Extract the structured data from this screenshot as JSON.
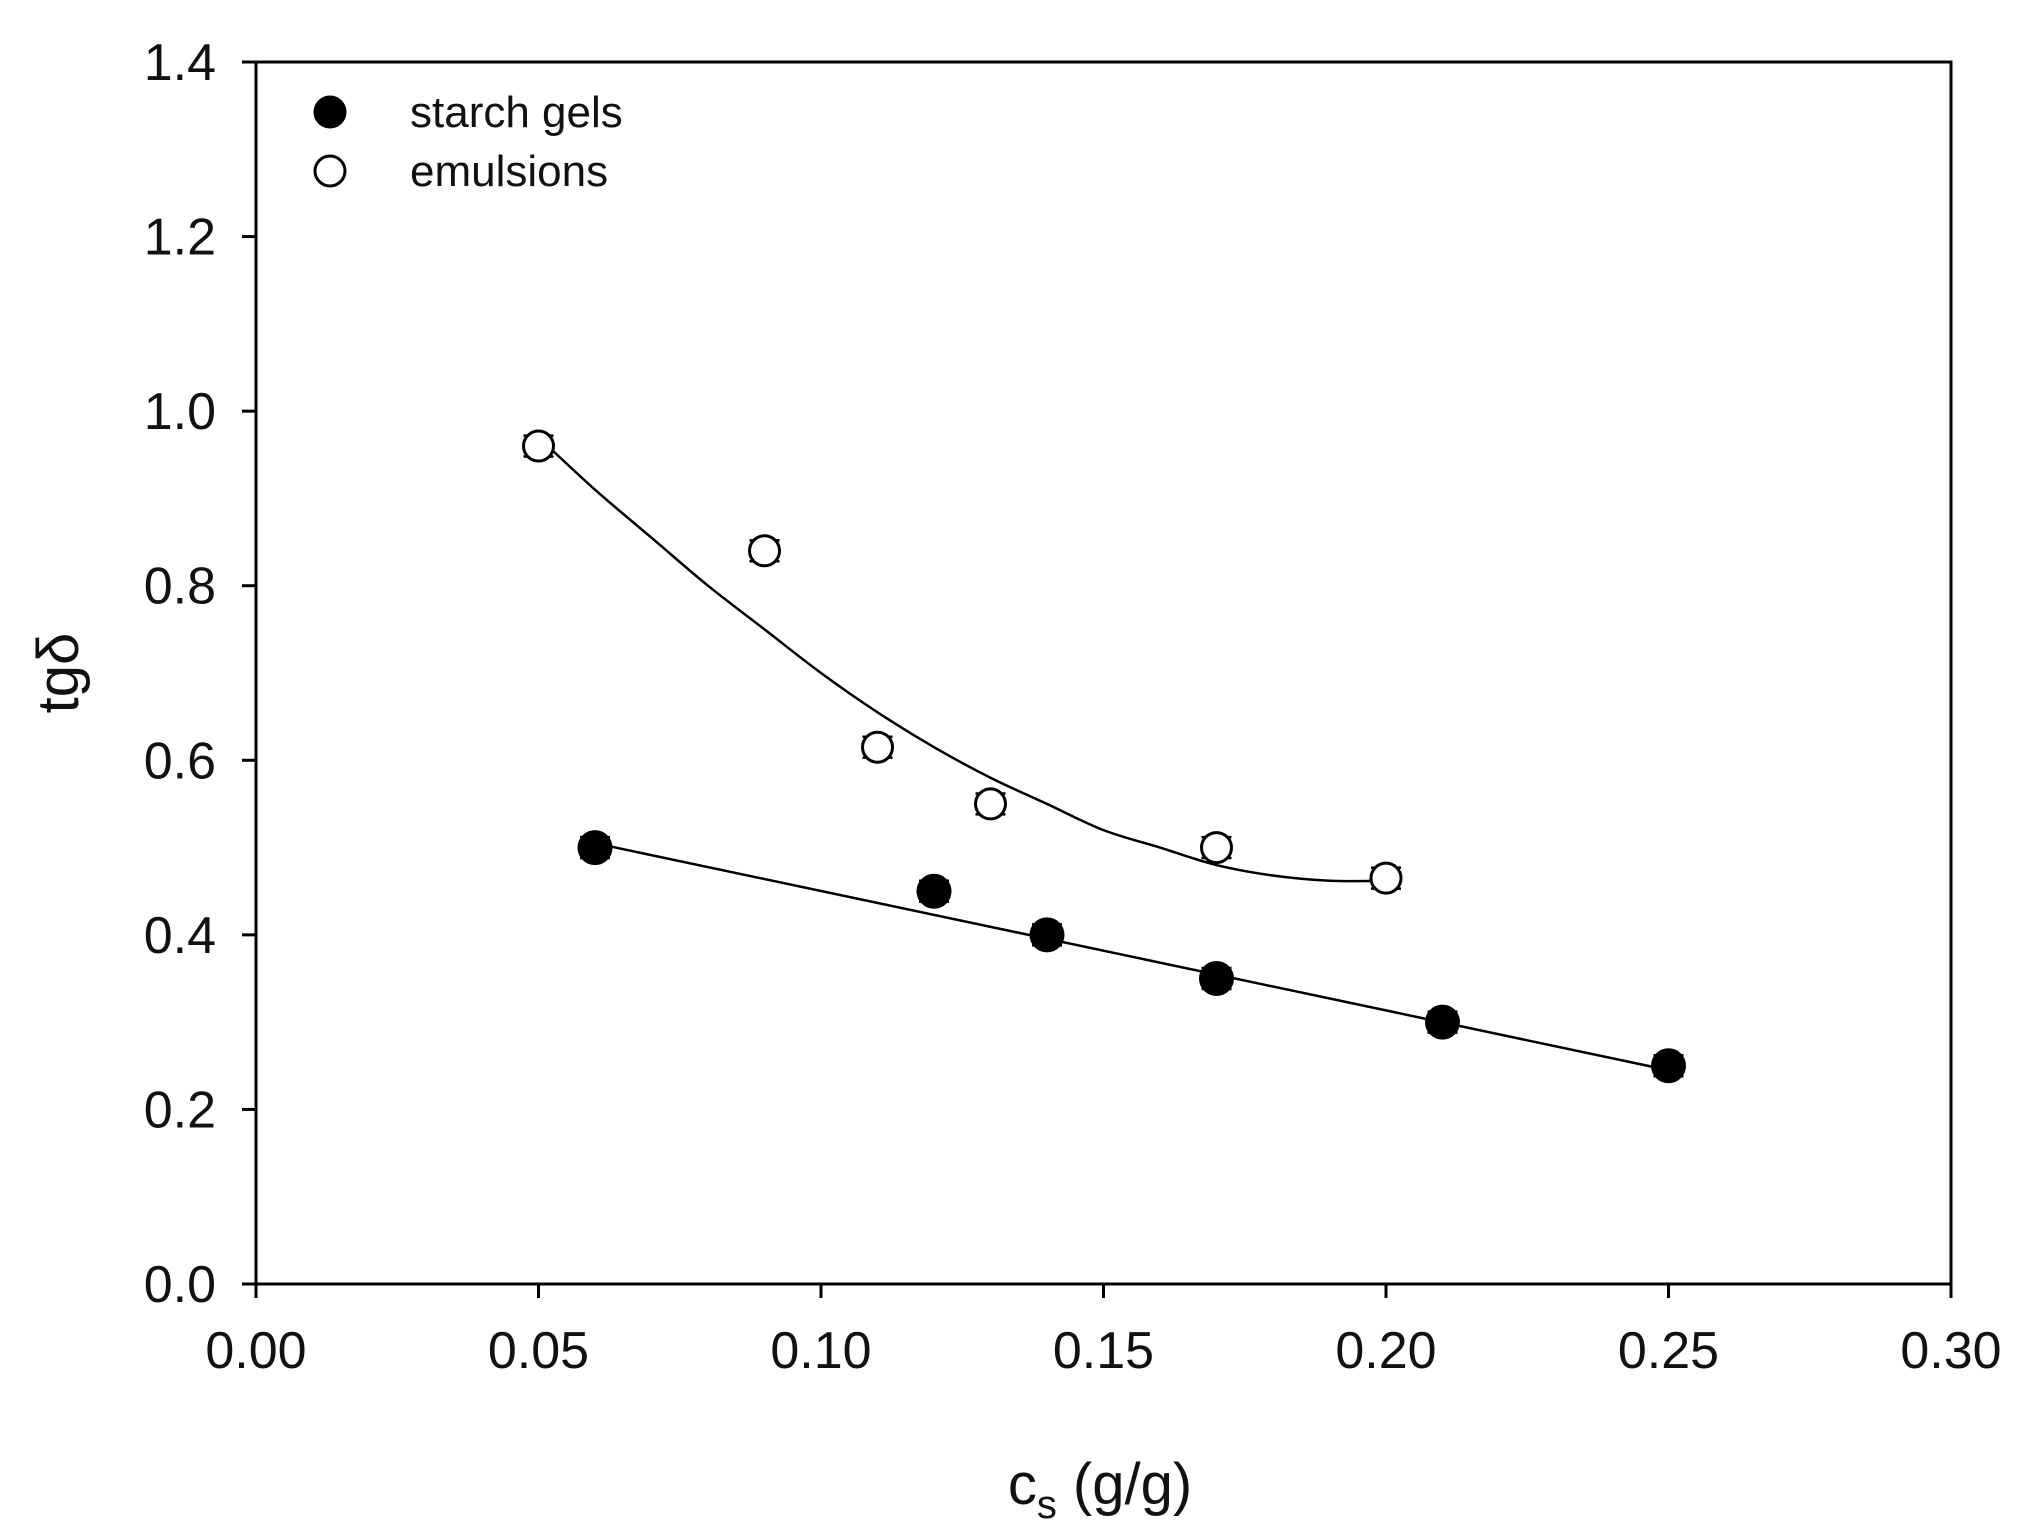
{
  "chart_data": {
    "type": "scatter",
    "title": "",
    "xlabel": "cs (g/g)",
    "xlabel_main": "c",
    "xlabel_sub": "s",
    "xlabel_units": " (g/g)",
    "ylabel": "tgδ",
    "xlim": [
      0.0,
      0.3
    ],
    "ylim": [
      0.0,
      1.4
    ],
    "xticks": [
      0.0,
      0.05,
      0.1,
      0.15,
      0.2,
      0.25,
      0.3
    ],
    "yticks": [
      0.0,
      0.2,
      0.4,
      0.6,
      0.8,
      1.0,
      1.2,
      1.4
    ],
    "xtick_labels": [
      "0.00",
      "0.05",
      "0.10",
      "0.15",
      "0.20",
      "0.25",
      "0.30"
    ],
    "ytick_labels": [
      "0.0",
      "0.2",
      "0.4",
      "0.6",
      "0.8",
      "1.0",
      "1.2",
      "1.4"
    ],
    "grid": false,
    "legend_position": "top-left",
    "series": [
      {
        "name": "starch gels",
        "marker": "filled-circle",
        "color": "#000000",
        "x": [
          0.06,
          0.12,
          0.14,
          0.17,
          0.21,
          0.25
        ],
        "y": [
          0.5,
          0.45,
          0.4,
          0.35,
          0.3,
          0.25
        ],
        "error": [
          0.012,
          0.012,
          0.012,
          0.012,
          0.012,
          0.012
        ],
        "fit": {
          "type": "linear",
          "x": [
            0.06,
            0.25
          ],
          "y": [
            0.505,
            0.245
          ]
        }
      },
      {
        "name": "emulsions",
        "marker": "open-circle",
        "color": "#000000",
        "x": [
          0.05,
          0.09,
          0.11,
          0.13,
          0.17,
          0.2
        ],
        "y": [
          0.96,
          0.84,
          0.615,
          0.55,
          0.5,
          0.465
        ],
        "error": [
          0.012,
          0.012,
          0.012,
          0.012,
          0.012,
          0.012
        ],
        "fit": {
          "type": "smooth-curve",
          "x": [
            0.05,
            0.06,
            0.07,
            0.08,
            0.09,
            0.1,
            0.11,
            0.12,
            0.13,
            0.14,
            0.15,
            0.16,
            0.17,
            0.18,
            0.19,
            0.2
          ],
          "y": [
            0.97,
            0.91,
            0.855,
            0.8,
            0.75,
            0.7,
            0.655,
            0.615,
            0.58,
            0.55,
            0.52,
            0.5,
            0.48,
            0.468,
            0.462,
            0.462
          ]
        }
      }
    ]
  }
}
